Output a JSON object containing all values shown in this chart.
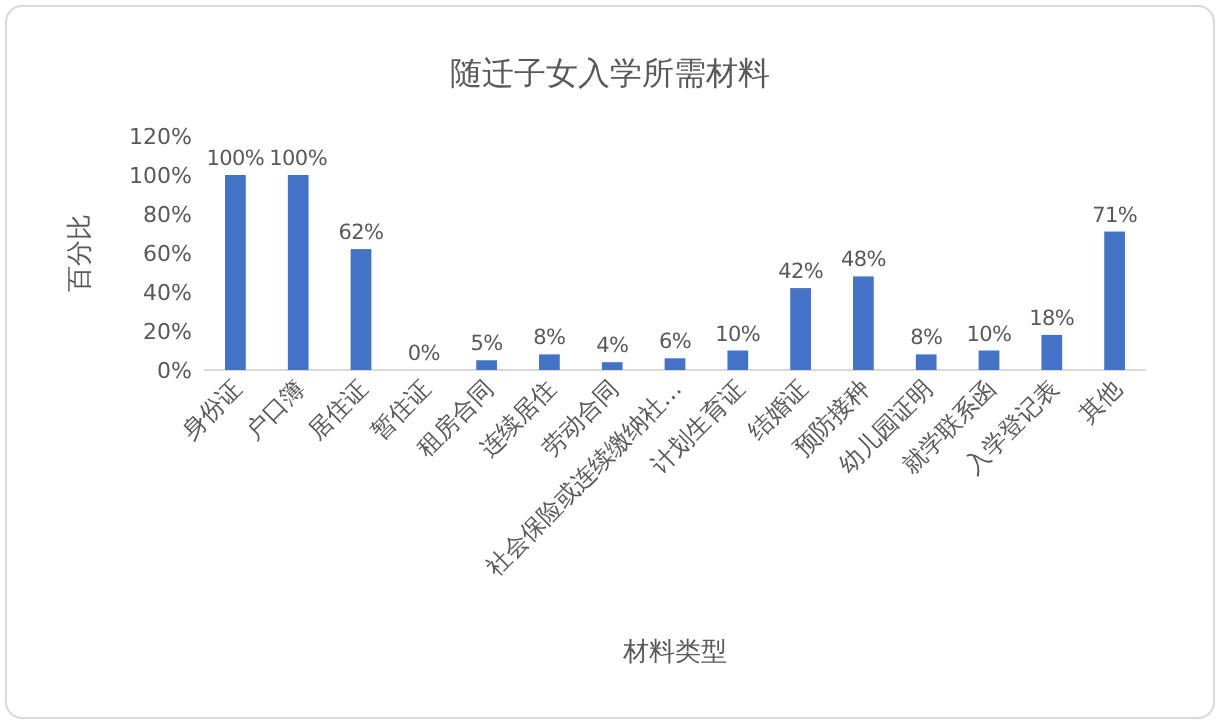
{
  "chart_data": {
    "type": "bar",
    "title": "随迁子女入学所需材料",
    "xlabel": "材料类型",
    "ylabel": "百分比",
    "categories": [
      "身份证",
      "户口簿",
      "居住证",
      "暂住证",
      "租房合同",
      "连续居住",
      "劳动合同",
      "社会保险或连续缴纳社…",
      "计划生育证",
      "结婚证",
      "预防接种",
      "幼儿园证明",
      "就学联系函",
      "入学登记表",
      "其他"
    ],
    "values": [
      100,
      100,
      62,
      0,
      5,
      8,
      4,
      6,
      10,
      42,
      48,
      8,
      10,
      18,
      71
    ],
    "value_labels": [
      "100%",
      "100%",
      "62%",
      "0%",
      "5%",
      "8%",
      "4%",
      "6%",
      "10%",
      "42%",
      "48%",
      "8%",
      "10%",
      "18%",
      "71%"
    ],
    "color": "#4472c4",
    "ylim": [
      0,
      120
    ],
    "yticks": [
      {
        "value": 0,
        "label": "0%"
      },
      {
        "value": 20,
        "label": "20%"
      },
      {
        "value": 40,
        "label": "40%"
      },
      {
        "value": 60,
        "label": "60%"
      },
      {
        "value": 80,
        "label": "80%"
      },
      {
        "value": 100,
        "label": "100%"
      },
      {
        "value": 120,
        "label": "120%"
      }
    ],
    "grid": false
  }
}
